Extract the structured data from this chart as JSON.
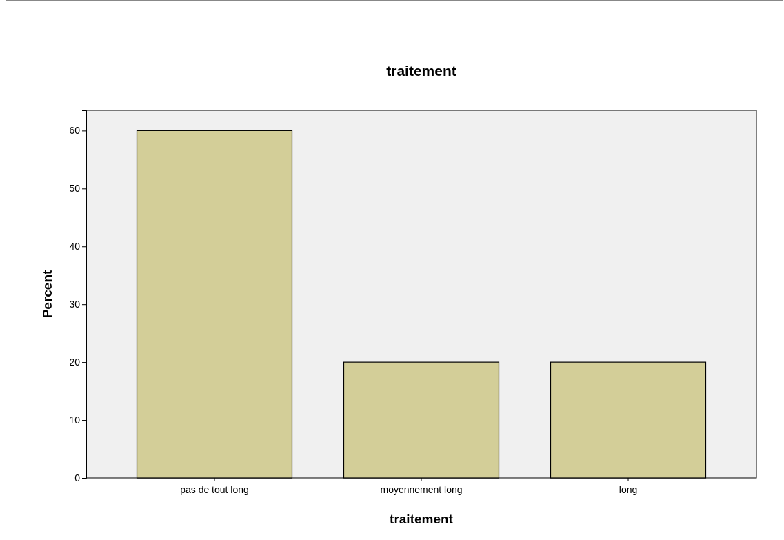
{
  "chart_data": {
    "type": "bar",
    "title": "traitement",
    "xlabel": "traitement",
    "ylabel": "Percent",
    "categories": [
      "pas de tout long",
      "moyennement long",
      "long"
    ],
    "values": [
      60,
      20,
      20
    ],
    "color": "#d3ce98",
    "ylim": [
      0,
      63.5
    ],
    "yticks": [
      0,
      10,
      20,
      30,
      40,
      50,
      60
    ],
    "grid": false
  }
}
